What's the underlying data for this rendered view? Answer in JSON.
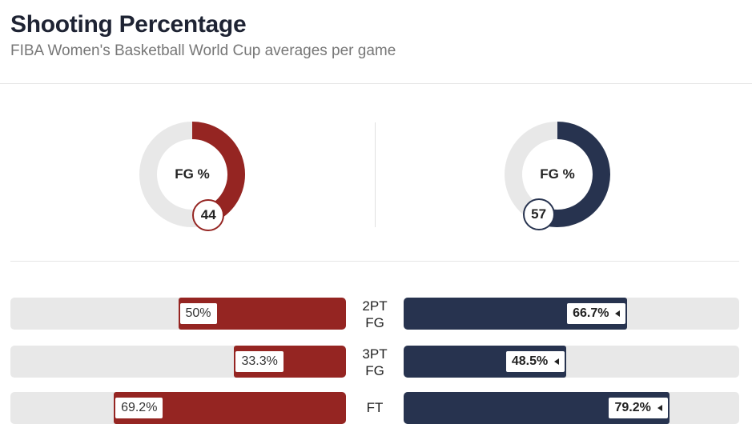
{
  "header": {
    "title": "Shooting Percentage",
    "subtitle": "FIBA Women's Basketball World Cup averages per game"
  },
  "colors": {
    "team_a": "#952522",
    "team_b": "#27334f",
    "track": "#e8e8e8"
  },
  "chart_data": [
    {
      "type": "pie",
      "label": "FG %",
      "series": [
        {
          "team": "left",
          "value": 44
        },
        {
          "team": "right",
          "value": 57
        }
      ]
    },
    {
      "type": "bar",
      "orientation": "horizontal-diverging",
      "categories": [
        {
          "label_lines": [
            "2PT",
            "FG"
          ],
          "left": 50,
          "right": 66.7
        },
        {
          "label_lines": [
            "3PT",
            "FG"
          ],
          "left": 33.3,
          "right": 48.5
        },
        {
          "label_lines": [
            "FT"
          ],
          "left": 69.2,
          "right": 79.2
        }
      ],
      "left_labels": [
        "50%",
        "33.3%",
        "69.2%"
      ],
      "right_labels": [
        "66.7%",
        "48.5%",
        "79.2%"
      ],
      "unit": "%",
      "xlim": [
        0,
        100
      ]
    }
  ]
}
